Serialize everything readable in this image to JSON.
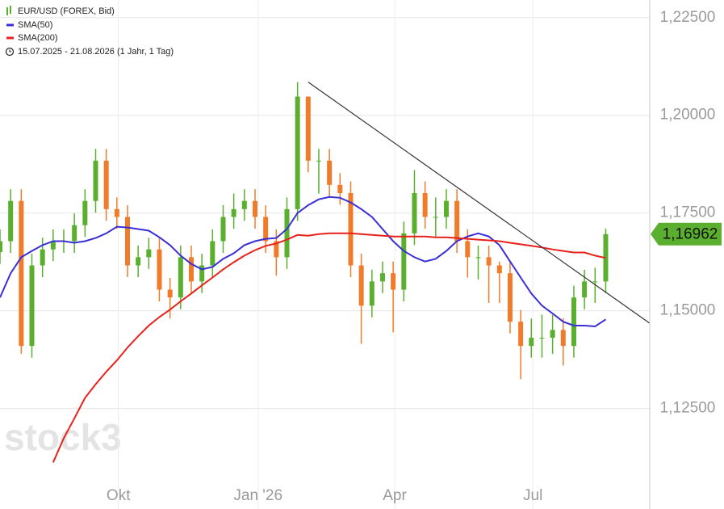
{
  "chart_data": {
    "type": "candlestick",
    "title": "EUR/USD (FOREX, Bid)",
    "subtitle": "15.07.2025 - 21.08.2026  (1 Jahr, 1 Tag)",
    "watermark": "stock3",
    "up_color": "#5aaf2e",
    "down_color": "#f07b2a",
    "grid": true,
    "xlim": [
      "2025-07-15",
      "2026-09-16"
    ],
    "xticks": [
      {
        "value": "2025-10-01",
        "label": "Okt"
      },
      {
        "value": "2026-01-01",
        "label": "Jan '26"
      },
      {
        "value": "2026-04-01",
        "label": "Apr"
      },
      {
        "value": "2026-07-01",
        "label": "Jul"
      }
    ],
    "ylim": [
      1.1059,
      1.2295
    ],
    "yticks": [
      {
        "value": 1.125,
        "label": "1,12500"
      },
      {
        "value": 1.15,
        "label": "1,15000"
      },
      {
        "value": 1.175,
        "label": "1,17500"
      },
      {
        "value": 1.2,
        "label": "1,20000"
      },
      {
        "value": 1.225,
        "label": "1,22500"
      }
    ],
    "last_price": {
      "value": 1.16962,
      "label": "1,16962",
      "color": "#5aaf2e"
    },
    "x": [
      "2025-07-15",
      "2025-07-22",
      "2025-07-29",
      "2025-08-05",
      "2025-08-12",
      "2025-08-19",
      "2025-08-26",
      "2025-09-02",
      "2025-09-09",
      "2025-09-16",
      "2025-09-23",
      "2025-09-30",
      "2025-10-07",
      "2025-10-14",
      "2025-10-21",
      "2025-10-28",
      "2025-11-04",
      "2025-11-11",
      "2025-11-18",
      "2025-11-25",
      "2025-12-02",
      "2025-12-09",
      "2025-12-16",
      "2025-12-23",
      "2025-12-30",
      "2026-01-06",
      "2026-01-13",
      "2026-01-20",
      "2026-01-27",
      "2026-02-03",
      "2026-02-10",
      "2026-02-17",
      "2026-02-24",
      "2026-03-03",
      "2026-03-10",
      "2026-03-17",
      "2026-03-24",
      "2026-03-31",
      "2026-04-07",
      "2026-04-14",
      "2026-04-21",
      "2026-04-28",
      "2026-05-05",
      "2026-05-12",
      "2026-05-19",
      "2026-05-26",
      "2026-06-02",
      "2026-06-09",
      "2026-06-16",
      "2026-06-23",
      "2026-06-30",
      "2026-07-07",
      "2026-07-14",
      "2026-07-21",
      "2026-07-28",
      "2026-08-04",
      "2026-08-11",
      "2026-08-18"
    ],
    "open": [
      1.165,
      1.1678,
      1.1781,
      1.141,
      1.1616,
      1.1657,
      1.1678,
      1.1678,
      1.1719,
      1.1781,
      1.1884,
      1.176,
      1.174,
      1.1616,
      1.1637,
      1.1657,
      1.1554,
      1.1534,
      1.1637,
      1.1575,
      1.1616,
      1.1678,
      1.174,
      1.176,
      1.1781,
      1.174,
      1.1678,
      1.1637,
      1.176,
      1.2048,
      1.1884,
      1.1884,
      1.1822,
      1.1801,
      1.1616,
      1.1513,
      1.1575,
      1.1596,
      1.1554,
      1.1698,
      1.1801,
      1.174,
      1.174,
      1.1781,
      1.1678,
      1.1637,
      1.1637,
      1.1616,
      1.1596,
      1.1472,
      1.141,
      1.1431,
      1.1431,
      1.1451,
      1.141,
      1.1534,
      1.1575,
      1.1575
    ],
    "high": [
      1.1708,
      1.1811,
      1.1811,
      1.1646,
      1.1687,
      1.1708,
      1.1708,
      1.1749,
      1.1811,
      1.1914,
      1.1914,
      1.179,
      1.177,
      1.1667,
      1.1687,
      1.1687,
      1.1584,
      1.1667,
      1.1667,
      1.1646,
      1.1708,
      1.177,
      1.18,
      1.1811,
      1.1811,
      1.177,
      1.1708,
      1.179,
      1.2085,
      1.2048,
      1.1914,
      1.1914,
      1.1852,
      1.1831,
      1.1646,
      1.1605,
      1.1626,
      1.1626,
      1.1728,
      1.186,
      1.1831,
      1.179,
      1.1811,
      1.1811,
      1.1708,
      1.1667,
      1.1667,
      1.1626,
      1.1626,
      1.1502,
      1.148,
      1.149,
      1.149,
      1.1481,
      1.1564,
      1.1605,
      1.161,
      1.171
    ],
    "low": [
      1.162,
      1.1648,
      1.139,
      1.138,
      1.1586,
      1.1627,
      1.1648,
      1.1648,
      1.1689,
      1.1751,
      1.173,
      1.171,
      1.1586,
      1.1586,
      1.1607,
      1.1524,
      1.148,
      1.1504,
      1.1545,
      1.1545,
      1.1586,
      1.1648,
      1.171,
      1.173,
      1.171,
      1.1648,
      1.159,
      1.1607,
      1.173,
      1.1854,
      1.18,
      1.1792,
      1.1771,
      1.1586,
      1.1415,
      1.1483,
      1.1545,
      1.1445,
      1.1524,
      1.1668,
      1.171,
      1.169,
      1.171,
      1.1648,
      1.1585,
      1.158,
      1.152,
      1.152,
      1.1442,
      1.1325,
      1.138,
      1.138,
      1.139,
      1.136,
      1.138,
      1.1504,
      1.152,
      1.1545
    ],
    "close": [
      1.1678,
      1.1781,
      1.141,
      1.1616,
      1.1657,
      1.1678,
      1.1678,
      1.1719,
      1.1781,
      1.1884,
      1.176,
      1.174,
      1.1616,
      1.1637,
      1.1657,
      1.1554,
      1.1534,
      1.1637,
      1.1575,
      1.1616,
      1.1678,
      1.174,
      1.176,
      1.1781,
      1.174,
      1.1678,
      1.1637,
      1.176,
      1.2048,
      1.1884,
      1.1884,
      1.1822,
      1.1801,
      1.1616,
      1.1513,
      1.1575,
      1.1596,
      1.1554,
      1.1698,
      1.1801,
      1.174,
      1.174,
      1.1781,
      1.1678,
      1.1637,
      1.1637,
      1.1616,
      1.1596,
      1.1472,
      1.141,
      1.1431,
      1.1431,
      1.1451,
      1.141,
      1.1534,
      1.1575,
      1.1575,
      1.1696
    ],
    "series": [
      {
        "name": "SMA(50)",
        "color": "#3a2fd6",
        "values": [
          1.1534,
          1.1596,
          1.1637,
          1.1653,
          1.1668,
          1.1678,
          1.1678,
          1.1674,
          1.1678,
          1.1686,
          1.1698,
          1.1715,
          1.1713,
          1.1709,
          1.1705,
          1.1688,
          1.1668,
          1.1641,
          1.162,
          1.1606,
          1.1612,
          1.1633,
          1.1647,
          1.1668,
          1.1678,
          1.1684,
          1.1686,
          1.1709,
          1.175,
          1.177,
          1.1785,
          1.1791,
          1.1789,
          1.1777,
          1.176,
          1.174,
          1.1709,
          1.1678,
          1.1653,
          1.1637,
          1.1626,
          1.1633,
          1.1653,
          1.1678,
          1.169,
          1.1698,
          1.169,
          1.1668,
          1.1626,
          1.1585,
          1.1544,
          1.1513,
          1.1493,
          1.1472,
          1.1462,
          1.1462,
          1.146,
          1.1478
        ]
      },
      {
        "name": "SMA(200)",
        "color": "#e8211b",
        "values": [
          null,
          null,
          null,
          null,
          null,
          1.1112,
          1.1174,
          1.1225,
          1.1277,
          1.1312,
          1.1344,
          1.1373,
          1.1406,
          1.1435,
          1.1462,
          1.1484,
          1.1503,
          1.1524,
          1.1544,
          1.1565,
          1.1585,
          1.1606,
          1.1624,
          1.1641,
          1.1655,
          1.1666,
          1.1672,
          1.1682,
          1.1694,
          1.1692,
          1.1696,
          1.1698,
          1.1698,
          1.1698,
          1.1696,
          1.1694,
          1.1692,
          1.169,
          1.169,
          1.169,
          1.169,
          1.1688,
          1.1688,
          1.1686,
          1.1684,
          1.1682,
          1.168,
          1.1678,
          1.1674,
          1.167,
          1.1666,
          1.1662,
          1.1657,
          1.1653,
          1.1649,
          1.1649,
          1.1641,
          1.1635
        ]
      }
    ],
    "trendline": {
      "x": [
        "2026-02-03",
        "2026-09-16"
      ],
      "y": [
        1.2085,
        1.1468
      ],
      "color": "#333333"
    }
  }
}
